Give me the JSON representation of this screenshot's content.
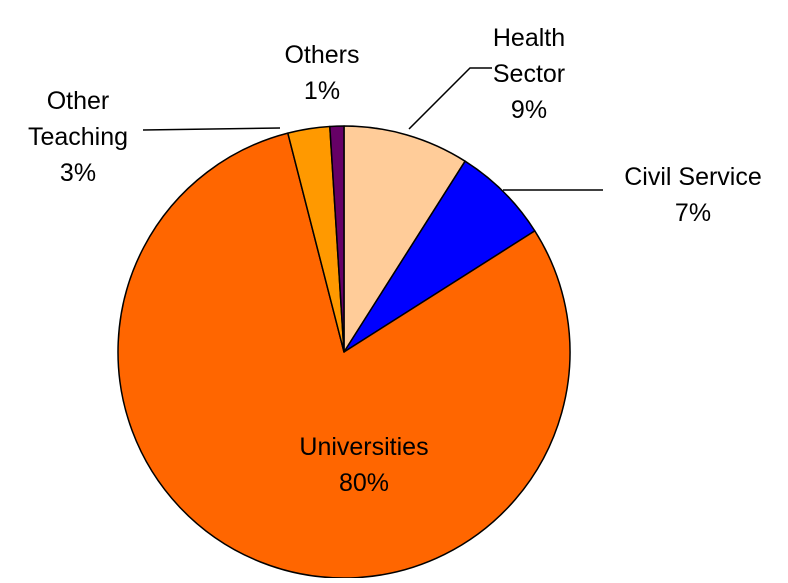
{
  "chart_data": {
    "type": "pie",
    "title": "",
    "slices": [
      {
        "label_lines": [
          "Health",
          "Sector"
        ],
        "percent_label": "9%",
        "value": 9,
        "color": "#FFCC99"
      },
      {
        "label_lines": [
          "Civil Service"
        ],
        "percent_label": "7%",
        "value": 7,
        "color": "#0000FF"
      },
      {
        "label_lines": [
          "Universities"
        ],
        "percent_label": "80%",
        "value": 80,
        "color": "#FF6600"
      },
      {
        "label_lines": [
          "Other",
          "Teaching"
        ],
        "percent_label": "3%",
        "value": 3,
        "color": "#FF9900"
      },
      {
        "label_lines": [
          "Others"
        ],
        "percent_label": "1%",
        "value": 1,
        "color": "#660066"
      }
    ],
    "start": "12 o'clock",
    "direction": "clockwise",
    "legend": "none",
    "data_labels": "category and percentage",
    "slice_border_color": "#000000"
  }
}
